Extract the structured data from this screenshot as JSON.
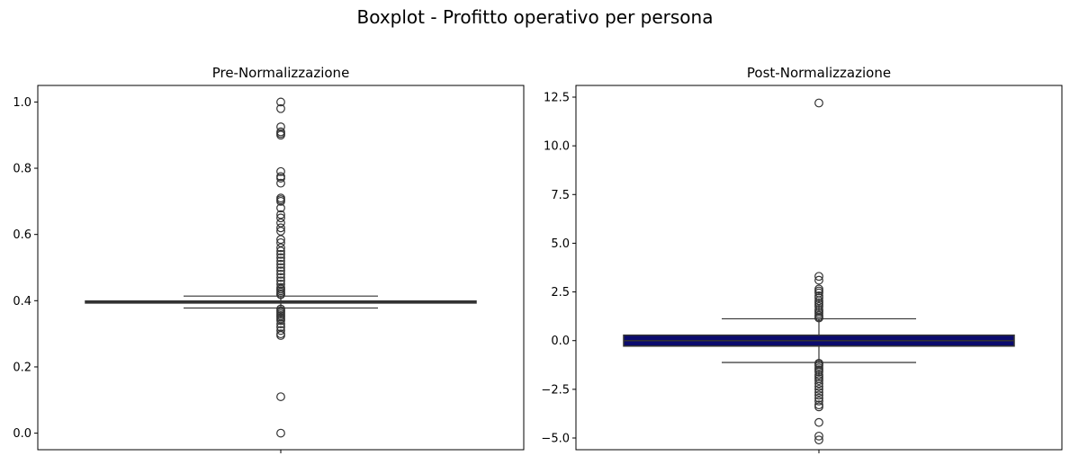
{
  "figure": {
    "suptitle": "Boxplot - Profitto operativo per persona"
  },
  "chart_data": [
    {
      "type": "boxplot",
      "title": "Pre-Normalizzazione",
      "xlabel": "",
      "ylabel": "",
      "ylim": [
        -0.05,
        1.05
      ],
      "yticks": [
        0.0,
        0.2,
        0.4,
        0.6,
        0.8,
        1.0
      ],
      "ytick_labels": [
        "0.0",
        "0.2",
        "0.4",
        "0.6",
        "0.8",
        "1.0"
      ],
      "box_color": "#8b1a1a",
      "box": {
        "q1": 0.393,
        "median": 0.396,
        "q3": 0.399,
        "whisker_low": 0.378,
        "whisker_high": 0.414
      },
      "outliers": [
        1.0,
        0.98,
        0.925,
        0.91,
        0.905,
        0.9,
        0.79,
        0.775,
        0.77,
        0.755,
        0.71,
        0.705,
        0.7,
        0.68,
        0.66,
        0.65,
        0.635,
        0.62,
        0.61,
        0.585,
        0.575,
        0.56,
        0.55,
        0.54,
        0.53,
        0.52,
        0.51,
        0.5,
        0.49,
        0.48,
        0.47,
        0.46,
        0.45,
        0.44,
        0.435,
        0.43,
        0.425,
        0.42,
        0.418,
        0.375,
        0.37,
        0.365,
        0.36,
        0.355,
        0.35,
        0.345,
        0.34,
        0.33,
        0.32,
        0.31,
        0.3,
        0.295,
        0.11,
        0.0
      ]
    },
    {
      "type": "boxplot",
      "title": "Post-Normalizzazione",
      "xlabel": "",
      "ylabel": "",
      "ylim": [
        -5.6,
        13.1
      ],
      "yticks": [
        -5.0,
        -2.5,
        0.0,
        2.5,
        5.0,
        7.5,
        10.0,
        12.5
      ],
      "ytick_labels": [
        "−5.0",
        "−2.5",
        "0.0",
        "2.5",
        "5.0",
        "7.5",
        "10.0",
        "12.5"
      ],
      "box_color": "#0b0b6e",
      "box": {
        "q1": -0.28,
        "median": 0.0,
        "q3": 0.28,
        "whisker_low": -1.12,
        "whisker_high": 1.12
      },
      "outliers": [
        12.2,
        3.3,
        3.1,
        2.65,
        2.55,
        2.45,
        2.3,
        2.2,
        2.05,
        1.95,
        1.85,
        1.75,
        1.6,
        1.5,
        1.4,
        1.3,
        1.22,
        1.16,
        -1.16,
        -1.22,
        -1.3,
        -1.4,
        -1.5,
        -1.6,
        -1.75,
        -1.85,
        -1.95,
        -2.05,
        -2.2,
        -2.35,
        -2.5,
        -2.65,
        -2.8,
        -2.95,
        -3.1,
        -3.3,
        -3.4,
        -4.2,
        -4.9,
        -5.1
      ]
    }
  ]
}
